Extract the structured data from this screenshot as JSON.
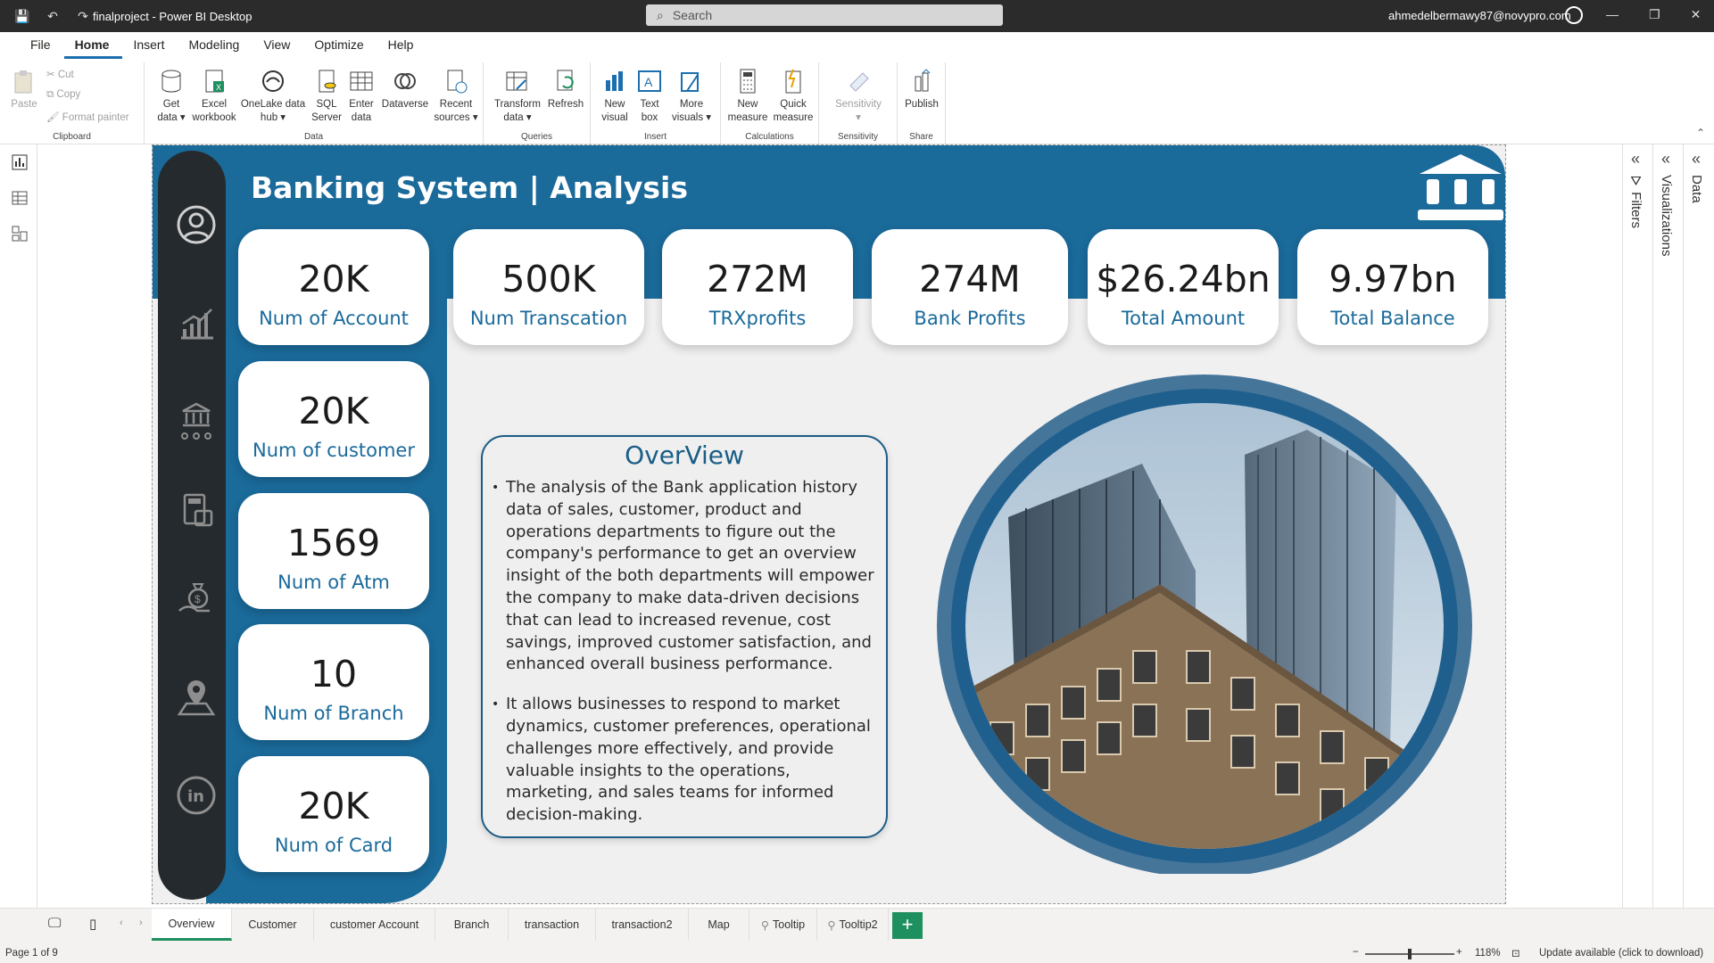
{
  "app": {
    "title": "finalproject - Power BI Desktop",
    "search_placeholder": "Search",
    "user": "ahmedelbermawy87@novypro.com"
  },
  "menu": [
    "File",
    "Home",
    "Insert",
    "Modeling",
    "View",
    "Optimize",
    "Help"
  ],
  "ribbon": {
    "clipboard": {
      "paste": "Paste",
      "cut": "Cut",
      "copy": "Copy",
      "format_painter": "Format painter",
      "label": "Clipboard"
    },
    "data": {
      "label": "Data",
      "buttons": [
        {
          "line1": "Get",
          "line2": "data ▾"
        },
        {
          "line1": "Excel",
          "line2": "workbook"
        },
        {
          "line1": "OneLake data",
          "line2": "hub ▾"
        },
        {
          "line1": "SQL",
          "line2": "Server"
        },
        {
          "line1": "Enter",
          "line2": "data"
        },
        {
          "line1": "Dataverse",
          "line2": ""
        },
        {
          "line1": "Recent",
          "line2": "sources ▾"
        }
      ]
    },
    "queries": {
      "label": "Queries",
      "transform": [
        "Transform",
        "data ▾"
      ],
      "refresh": "Refresh"
    },
    "insert": {
      "label": "Insert",
      "new_visual": [
        "New",
        "visual"
      ],
      "text_box": [
        "Text",
        "box"
      ],
      "more_visuals": [
        "More",
        "visuals ▾"
      ]
    },
    "calculations": {
      "label": "Calculations",
      "new_measure": [
        "New",
        "measure"
      ],
      "quick_measure": [
        "Quick",
        "measure"
      ]
    },
    "sensitivity": {
      "label": "Sensitivity",
      "button": "Sensitivity"
    },
    "share": {
      "label": "Share",
      "publish": "Publish"
    }
  },
  "report": {
    "title": "Banking System | Analysis",
    "kpis_top": [
      {
        "value": "20K",
        "label": "Num of Account"
      },
      {
        "value": "500K",
        "label": "Num Transcation"
      },
      {
        "value": "272M",
        "label": "TRXprofits"
      },
      {
        "value": "274M",
        "label": "Bank Profits"
      },
      {
        "value": "$26.24bn",
        "label": "Total Amount"
      },
      {
        "value": "9.97bn",
        "label": "Total Balance"
      }
    ],
    "kpis_side": [
      {
        "value": "20K",
        "label": "Num of customer"
      },
      {
        "value": "1569",
        "label": "Num of Atm"
      },
      {
        "value": "10",
        "label": "Num of Branch"
      },
      {
        "value": "20K",
        "label": "Num of Card"
      }
    ],
    "nav_icons": [
      "user-icon",
      "chart-growth-icon",
      "bank-network-icon",
      "calculator-money-icon",
      "money-bag-hand-icon",
      "map-pin-icon",
      "linkedin-icon"
    ],
    "overview": {
      "title": "OverView",
      "points": [
        "The analysis of the Bank application history data of sales, customer, product and operations departments to figure out the company's performance to get an overview insight of the both departments will empower the company to make data-driven decisions that can lead to increased revenue, cost savings, improved customer satisfaction, and enhanced overall business performance.",
        "It allows businesses to respond to market dynamics, customer preferences, operational challenges more effectively, and provide valuable insights to the operations, marketing, and sales teams for informed decision-making."
      ]
    }
  },
  "panes": [
    "Filters",
    "Visualizations",
    "Data"
  ],
  "tabs": [
    "Overview",
    "Customer",
    "customer Account",
    "Branch",
    "transaction",
    "transaction2",
    "Map",
    "Tooltip",
    "Tooltip2"
  ],
  "status": {
    "page": "Page 1 of 9",
    "zoom": "118%",
    "update": "Update available (click to download)"
  },
  "colors": {
    "accent": "#1a6a9a",
    "dark": "#252a2e",
    "tab_green": "#1e8f5e"
  }
}
